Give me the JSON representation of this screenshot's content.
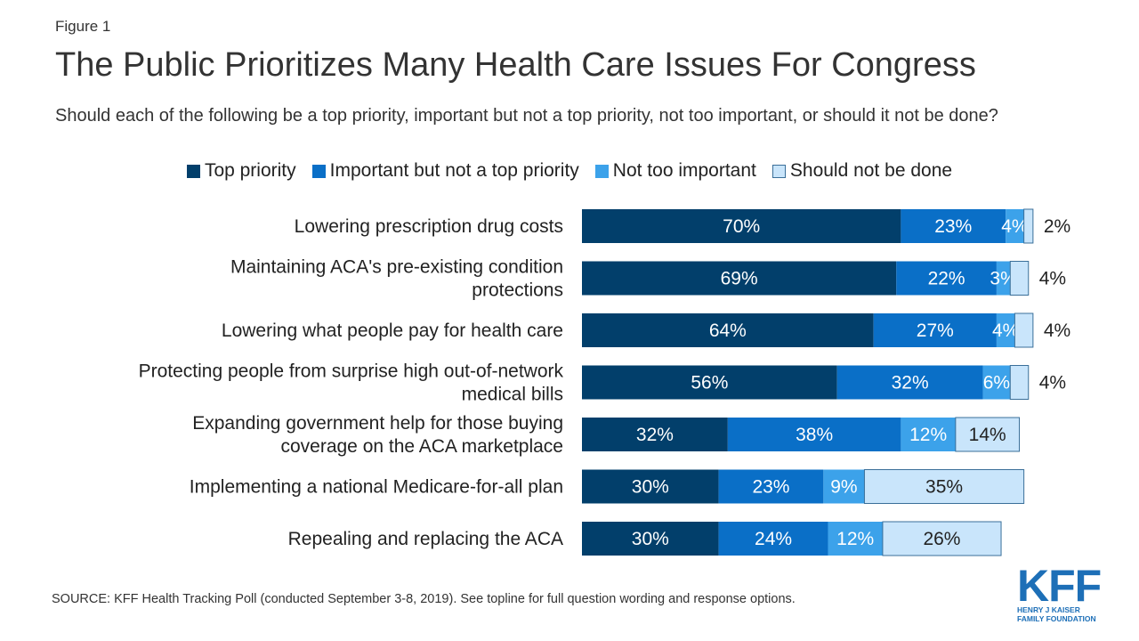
{
  "figure_label": "Figure 1",
  "source": "SOURCE: KFF Health Tracking Poll (conducted September 3-8, 2019). See topline for full question wording and response options.",
  "logo": {
    "text": "KFF",
    "line1": "HENRY J KAISER",
    "line2": "FAMILY FOUNDATION"
  },
  "colors": [
    "#023f6b",
    "#0a6fc7",
    "#3ca2ea",
    "#c9e5fb"
  ],
  "chart_data": {
    "type": "bar",
    "orientation": "horizontal",
    "stacked": true,
    "title": "The Public Prioritizes Many Health Care Issues For Congress",
    "subtitle": "Should each of the following be a top priority, important but not a top priority, not too important, or should it not be done?",
    "legend_position": "top",
    "grid": false,
    "categories": [
      [
        "Lowering prescription drug costs"
      ],
      [
        "Maintaining ACA's pre-existing condition",
        "protections"
      ],
      [
        "Lowering what people pay for health care"
      ],
      [
        "Protecting people from surprise high out-of-network",
        "medical bills"
      ],
      [
        "Expanding government help for those buying",
        "coverage on the ACA marketplace"
      ],
      [
        "Implementing a national Medicare-for-all plan"
      ],
      [
        "Repealing and replacing the ACA"
      ]
    ],
    "series": [
      {
        "name": "Top priority",
        "values": [
          70,
          69,
          64,
          56,
          32,
          30,
          30
        ]
      },
      {
        "name": "Important but not a top priority",
        "values": [
          23,
          22,
          27,
          32,
          38,
          23,
          24
        ]
      },
      {
        "name": "Not too important",
        "values": [
          4,
          3,
          4,
          6,
          12,
          9,
          12
        ]
      },
      {
        "name": "Should not be done",
        "values": [
          2,
          4,
          4,
          4,
          14,
          35,
          26
        ]
      }
    ],
    "xlim": [
      0,
      100
    ],
    "value_suffix": "%"
  }
}
